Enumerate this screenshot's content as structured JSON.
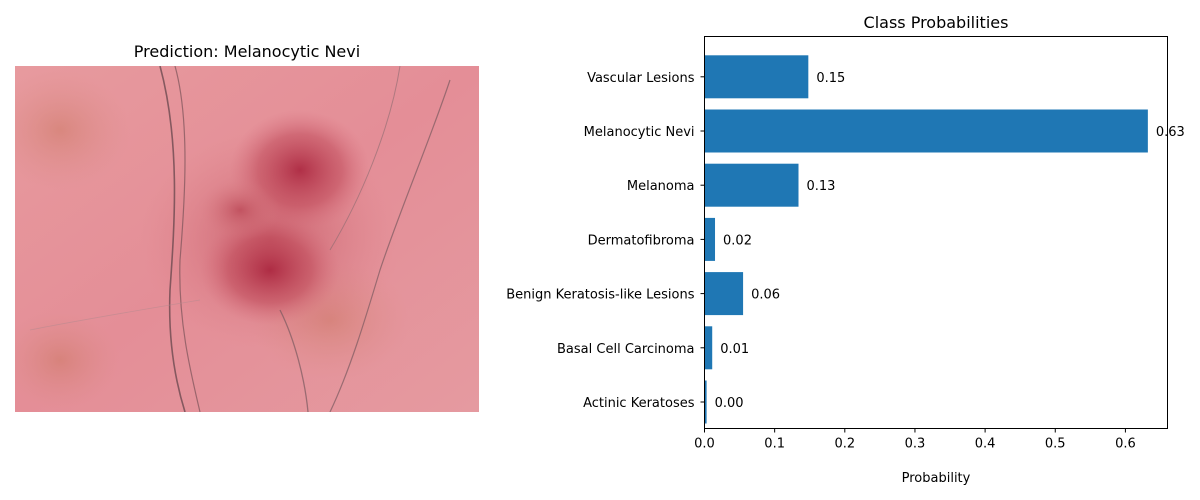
{
  "image_panel": {
    "title": "Prediction: Melanocytic Nevi",
    "image_description_icon": "skin-lesion-photo"
  },
  "chart_data": {
    "type": "bar",
    "orientation": "horizontal",
    "title": "Class Probabilities",
    "xlabel": "Probability",
    "ylabel": "",
    "categories": [
      "Actinic Keratoses",
      "Basal Cell Carcinoma",
      "Benign Keratosis-like Lesions",
      "Dermatofibroma",
      "Melanoma",
      "Melanocytic Nevi",
      "Vascular Lesions"
    ],
    "values": [
      0.003,
      0.011,
      0.055,
      0.015,
      0.134,
      0.632,
      0.148
    ],
    "value_labels": [
      "0.00",
      "0.01",
      "0.06",
      "0.02",
      "0.13",
      "0.63",
      "0.15"
    ],
    "xlim": [
      0,
      0.66
    ],
    "xticks": [
      0.0,
      0.1,
      0.2,
      0.3,
      0.4,
      0.5,
      0.6
    ],
    "xtick_labels": [
      "0.0",
      "0.1",
      "0.2",
      "0.3",
      "0.4",
      "0.5",
      "0.6"
    ],
    "bar_color": "#1f77b4",
    "grid": false,
    "legend": "none"
  }
}
